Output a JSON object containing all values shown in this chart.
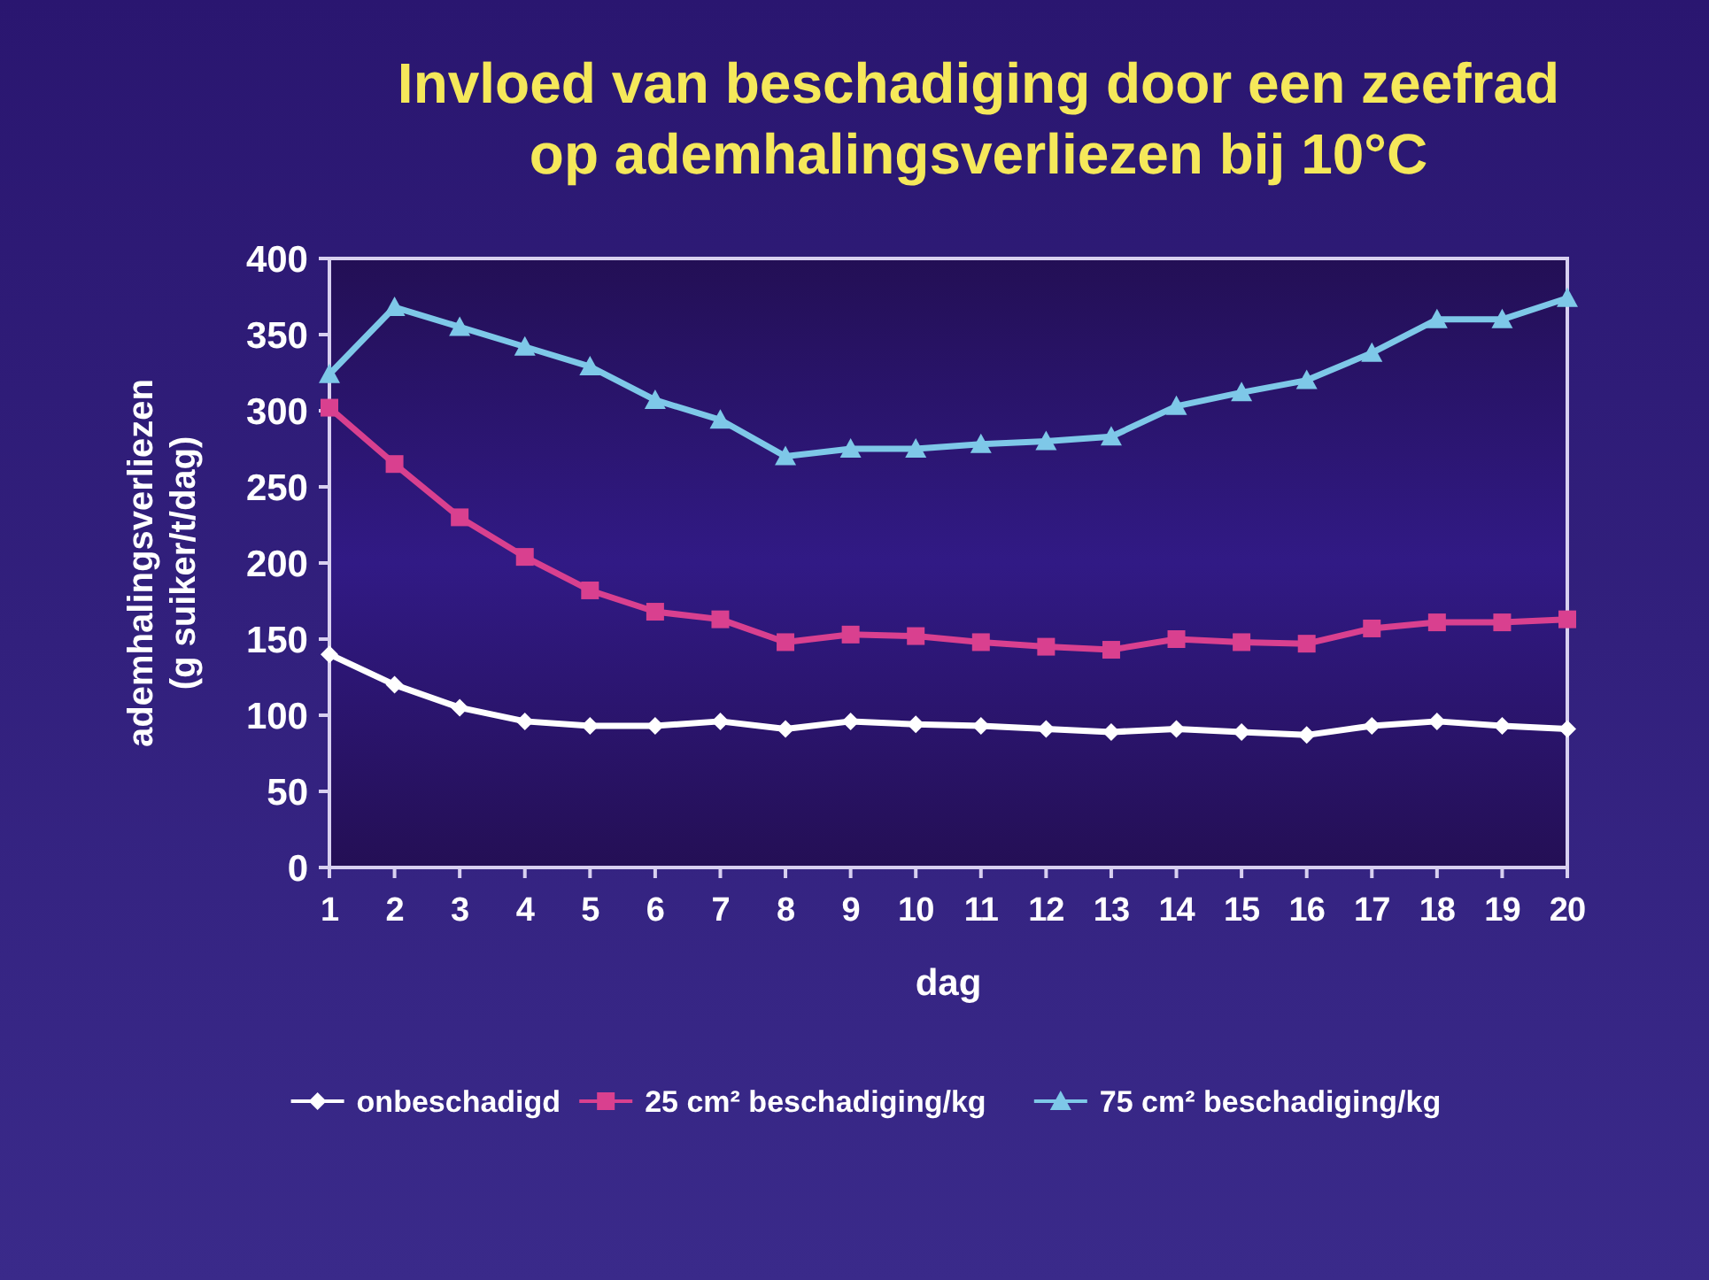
{
  "chart_data": {
    "type": "line",
    "title": "Invloed van beschadiging door een zeefrad op ademhalingsverliezen bij 10°C",
    "xlabel": "dag",
    "ylabel": "ademhalingsverliezen (g suiker/t/dag)",
    "x": [
      1,
      2,
      3,
      4,
      5,
      6,
      7,
      8,
      9,
      10,
      11,
      12,
      13,
      14,
      15,
      16,
      17,
      18,
      19,
      20
    ],
    "xlim": [
      1,
      20
    ],
    "xticks": [
      1,
      2,
      3,
      4,
      5,
      6,
      7,
      8,
      9,
      10,
      11,
      12,
      13,
      14,
      15,
      16,
      17,
      18,
      19,
      20
    ],
    "ylim": [
      0,
      400
    ],
    "yticks": [
      0,
      50,
      100,
      150,
      200,
      250,
      300,
      350,
      400
    ],
    "grid": false,
    "legend": "bottom",
    "series": [
      {
        "name": "onbeschadigd",
        "color": "#ffffff",
        "marker": "diamond",
        "values": [
          140,
          120,
          105,
          96,
          93,
          93,
          96,
          91,
          96,
          94,
          93,
          91,
          89,
          91,
          89,
          87,
          93,
          96,
          93,
          91
        ]
      },
      {
        "name": "25 cm² beschadiging/kg",
        "color": "#d9408f",
        "marker": "square",
        "values": [
          302,
          265,
          230,
          204,
          182,
          168,
          163,
          148,
          153,
          152,
          148,
          145,
          143,
          150,
          148,
          147,
          157,
          161,
          161,
          163
        ]
      },
      {
        "name": "75 cm² beschadiging/kg",
        "color": "#7ec8e8",
        "marker": "triangle",
        "values": [
          324,
          368,
          355,
          342,
          329,
          307,
          294,
          270,
          275,
          275,
          278,
          280,
          283,
          303,
          312,
          320,
          338,
          360,
          360,
          374
        ]
      }
    ]
  }
}
